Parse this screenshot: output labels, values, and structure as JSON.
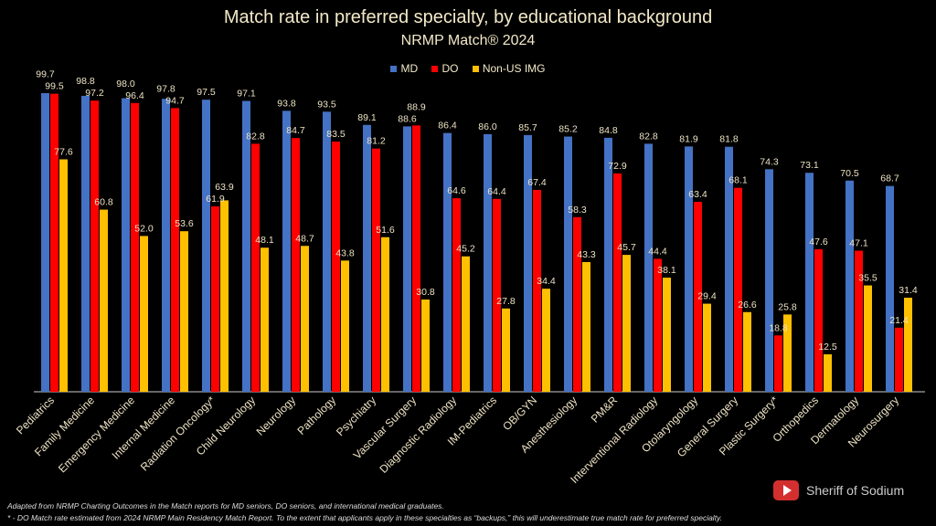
{
  "chart_data": {
    "type": "bar",
    "title": "Match rate in preferred specialty, by educational background",
    "subtitle": "NRMP Match® 2024",
    "legend_position": "top",
    "grid": false,
    "ylim": [
      0,
      100
    ],
    "categories": [
      "Pediatrics",
      "Family Medicine",
      "Emergency Medicine",
      "Internal Medicine",
      "Radiation Oncology*",
      "Child Neurology",
      "Neurology",
      "Pathology",
      "Psychiatry",
      "Vascular Surgery",
      "Diagnostic Radiology",
      "IM-Pediatrics",
      "OB/GYN",
      "Anesthesiology",
      "PM&R",
      "Interventional Radiology",
      "Otolaryngology",
      "General Surgery",
      "Plastic Surgery*",
      "Orthopedics",
      "Dermatology",
      "Neurosurgery"
    ],
    "series": [
      {
        "name": "MD",
        "color": "#4472c4",
        "values": [
          99.7,
          98.8,
          98.0,
          97.8,
          97.5,
          97.1,
          93.8,
          93.5,
          89.1,
          88.6,
          86.4,
          86.0,
          85.7,
          85.2,
          84.8,
          82.8,
          81.9,
          81.8,
          74.3,
          73.1,
          70.5,
          68.7
        ]
      },
      {
        "name": "DO",
        "color": "#ff0000",
        "values": [
          99.5,
          97.2,
          96.4,
          94.7,
          61.9,
          82.8,
          84.7,
          83.5,
          81.2,
          88.9,
          64.6,
          64.4,
          67.4,
          58.3,
          72.9,
          44.4,
          63.4,
          68.1,
          18.8,
          47.6,
          47.1,
          21.4
        ]
      },
      {
        "name": "Non-US IMG",
        "color": "#ffc000",
        "values": [
          77.6,
          60.8,
          52.0,
          53.6,
          63.9,
          48.1,
          48.7,
          43.8,
          51.6,
          30.8,
          45.2,
          27.8,
          34.4,
          43.3,
          45.7,
          38.1,
          29.4,
          26.6,
          25.8,
          12.5,
          35.5,
          31.4
        ]
      }
    ]
  },
  "footnotes": [
    "Adapted from NRMP Charting Outcomes in the Match reports for MD seniors, DO seniors, and international medical graduates.",
    "* - DO Match rate estimated from 2024 NRMP Main Residency Match Report. To the extent that applicants apply in these specialties as “backups,” this will underestimate true match rate for preferred specialty."
  ],
  "brand": {
    "name": "Sheriff of Sodium",
    "icon": "youtube-play-icon"
  }
}
